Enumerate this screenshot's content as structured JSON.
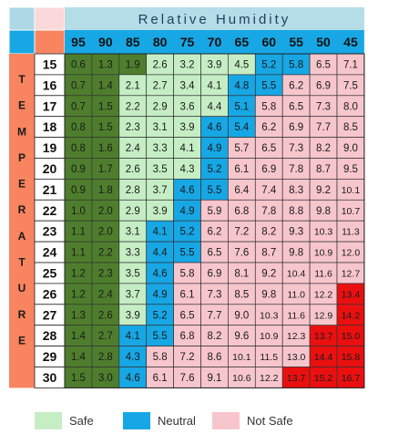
{
  "chart_data": {
    "type": "heatmap",
    "title": "Relative Humidity",
    "side_label": "TEMPERATURE",
    "x": [
      95,
      90,
      85,
      80,
      75,
      70,
      65,
      60,
      55,
      50,
      45
    ],
    "y": [
      15,
      16,
      17,
      18,
      19,
      20,
      21,
      22,
      23,
      24,
      25,
      26,
      27,
      28,
      29,
      30
    ],
    "values": [
      [
        0.6,
        1.3,
        1.9,
        2.6,
        3.2,
        3.9,
        4.5,
        5.2,
        5.8,
        6.5,
        7.1
      ],
      [
        0.7,
        1.4,
        2.1,
        2.7,
        3.4,
        4.1,
        4.8,
        5.5,
        6.2,
        6.9,
        7.5
      ],
      [
        0.7,
        1.5,
        2.2,
        2.9,
        3.6,
        4.4,
        5.1,
        5.8,
        6.5,
        7.3,
        8.0
      ],
      [
        0.8,
        1.5,
        2.3,
        3.1,
        3.9,
        4.6,
        5.4,
        6.2,
        6.9,
        7.7,
        8.5
      ],
      [
        0.8,
        1.6,
        2.4,
        3.3,
        4.1,
        4.9,
        5.7,
        6.5,
        7.3,
        8.2,
        9.0
      ],
      [
        0.9,
        1.7,
        2.6,
        3.5,
        4.3,
        5.2,
        6.1,
        6.9,
        7.8,
        8.7,
        9.5
      ],
      [
        0.9,
        1.8,
        2.8,
        3.7,
        4.6,
        5.5,
        6.4,
        7.4,
        8.3,
        9.2,
        10.1
      ],
      [
        1.0,
        2.0,
        2.9,
        3.9,
        4.9,
        5.9,
        6.8,
        7.8,
        8.8,
        9.8,
        10.7
      ],
      [
        1.1,
        2.0,
        3.1,
        4.1,
        5.2,
        6.2,
        7.2,
        8.2,
        9.3,
        10.3,
        11.3
      ],
      [
        1.1,
        2.2,
        3.3,
        4.4,
        5.5,
        6.5,
        7.6,
        8.7,
        9.8,
        10.9,
        12.0
      ],
      [
        1.2,
        2.3,
        3.5,
        4.6,
        5.8,
        6.9,
        8.1,
        9.2,
        10.4,
        11.6,
        12.7
      ],
      [
        1.2,
        2.4,
        3.7,
        4.9,
        6.1,
        7.3,
        8.5,
        9.8,
        11.0,
        12.2,
        13.4
      ],
      [
        1.3,
        2.6,
        3.9,
        5.2,
        6.5,
        7.7,
        9.0,
        10.3,
        11.6,
        12.9,
        14.2
      ],
      [
        1.4,
        2.7,
        4.1,
        5.5,
        6.8,
        8.2,
        9.6,
        10.9,
        12.3,
        13.7,
        15.0
      ],
      [
        1.4,
        2.8,
        4.3,
        5.8,
        7.2,
        8.6,
        10.1,
        11.5,
        13.0,
        14.4,
        15.8
      ],
      [
        1.5,
        3.0,
        4.6,
        6.1,
        7.6,
        9.1,
        10.6,
        12.2,
        13.7,
        15.2,
        16.7
      ]
    ],
    "categories_grid": [
      "DDDLLLLBBNN",
      "DDLLLLBBNNN",
      "DDLLLLBNNNN",
      "DDLLLBBNNNN",
      "DDLLLBNNNNN",
      "DDLLLBNNNNN",
      "DDLLBBNNNNN",
      "DDLLBNNNNNN",
      "DDLBBNNNNNN",
      "DDLBBNNNNNN",
      "DDLBNNNNNNN",
      "DDLBNNNNNNR",
      "DDLBNNNNNNR",
      "DDBBNNNNNRR",
      "DDBNNNNNNRR",
      "DDBNNNNNRRR"
    ],
    "category_colors": {
      "D": "#4e7e2d",
      "L": "#c6eec5",
      "B": "#17a7e5",
      "N": "#f7c6cc",
      "R": "#ea1010"
    },
    "header_colors": {
      "title_bar": "#b5dde8",
      "x_header": "#17a7e5",
      "y_header": "#f98460",
      "corner_blue": "#add8e6",
      "corner_pink": "#fbd8da"
    },
    "legend": [
      {
        "label": "Safe",
        "color": "#c6eec5"
      },
      {
        "label": "Neutral",
        "color": "#17a7e5"
      },
      {
        "label": "Not Safe",
        "color": "#f7c6cc"
      }
    ]
  }
}
